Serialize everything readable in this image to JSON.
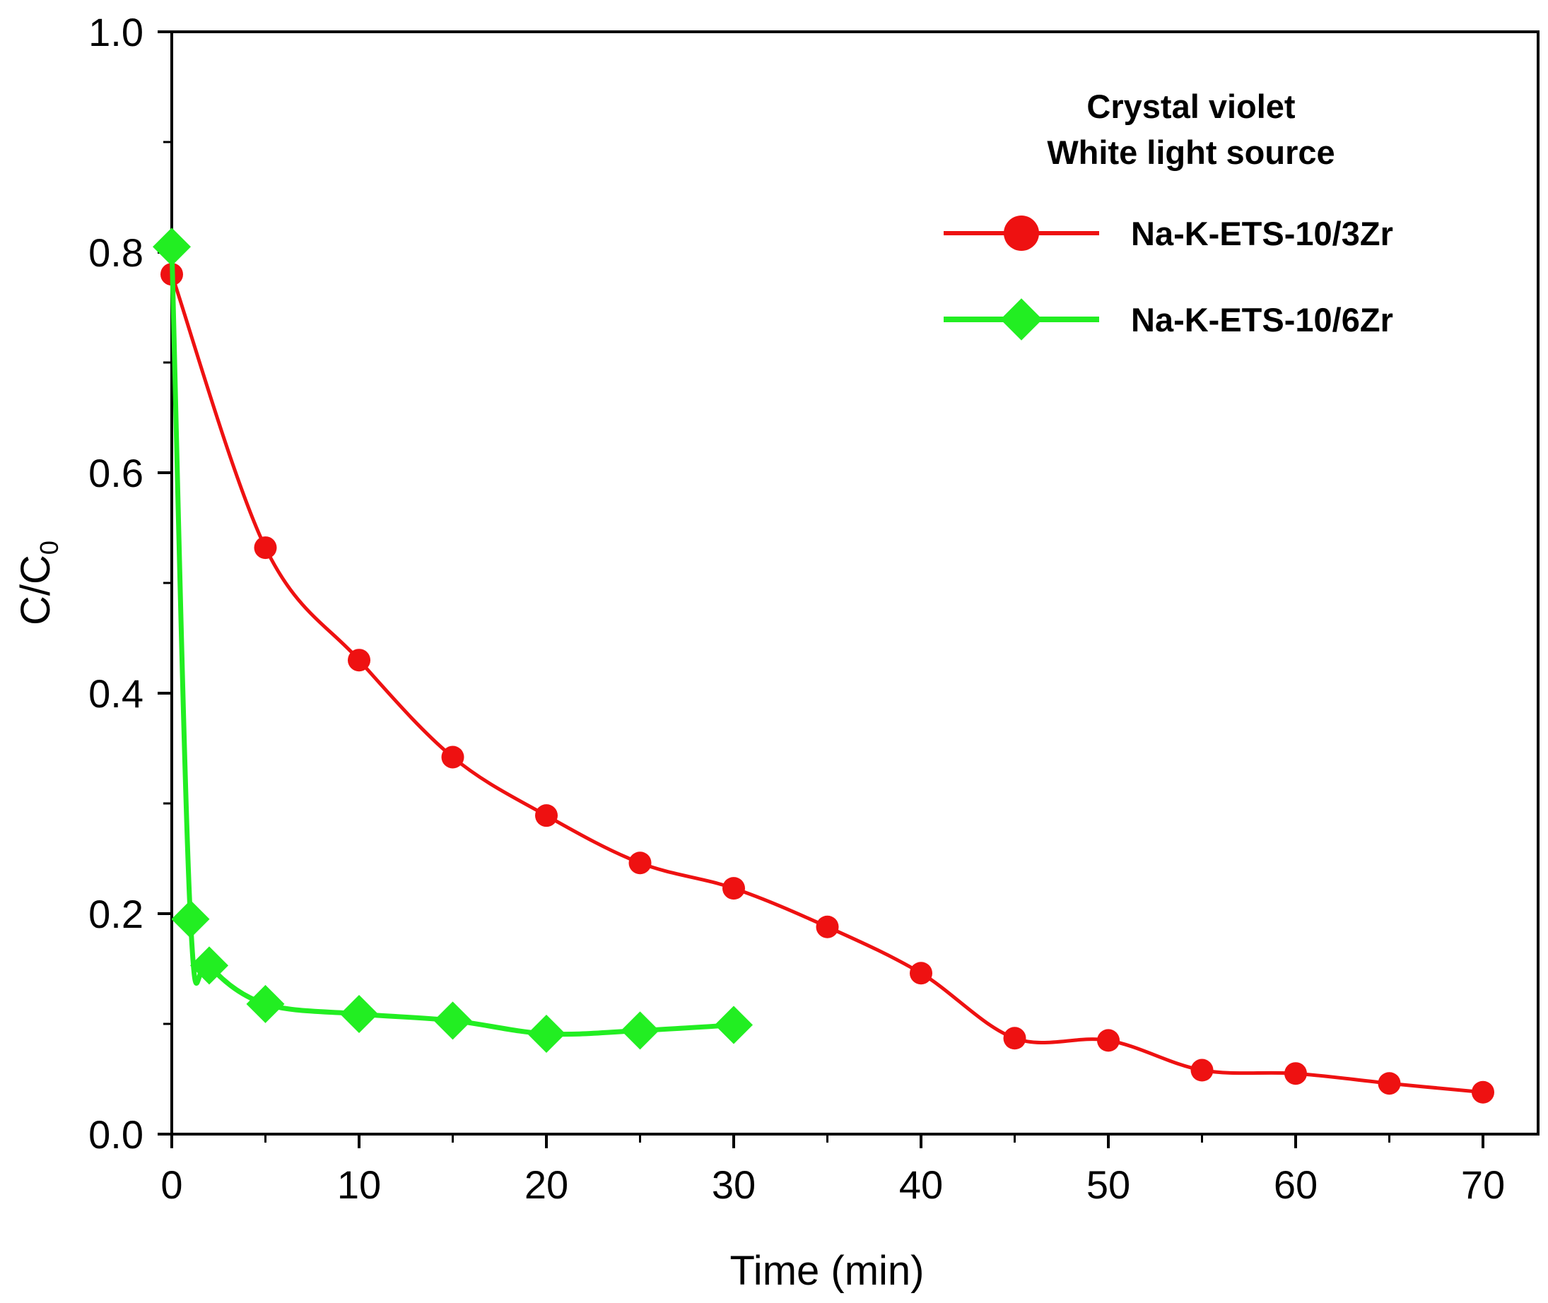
{
  "chart_data": {
    "type": "line",
    "title": "Crystal violet",
    "subtitle": "White light source",
    "xlabel": "Time (min)",
    "ylabel": "C/C",
    "ylabel_subscript": "0",
    "xlim": [
      0,
      73
    ],
    "ylim": [
      0,
      1.0
    ],
    "x_ticks": [
      "0",
      "10",
      "20",
      "30",
      "40",
      "50",
      "60",
      "70"
    ],
    "y_ticks": [
      "0.0",
      "0.2",
      "0.4",
      "0.6",
      "0.8",
      "1.0"
    ],
    "legend_position": "top-right",
    "series": [
      {
        "name": "Na-K-ETS-10/3Zr",
        "color": "#ee1111",
        "marker": "circle",
        "x": [
          0,
          5,
          10,
          15,
          20,
          25,
          30,
          35,
          40,
          45,
          50,
          55,
          60,
          65,
          70
        ],
        "values": [
          0.78,
          0.532,
          0.43,
          0.342,
          0.289,
          0.246,
          0.223,
          0.188,
          0.146,
          0.087,
          0.085,
          0.058,
          0.055,
          0.046,
          0.038
        ]
      },
      {
        "name": "Na-K-ETS-10/6Zr",
        "color": "#22ee22",
        "marker": "diamond",
        "x": [
          0,
          1,
          2,
          5,
          10,
          15,
          20,
          25,
          30
        ],
        "values": [
          0.805,
          0.195,
          0.153,
          0.118,
          0.109,
          0.103,
          0.091,
          0.094,
          0.099
        ]
      }
    ]
  }
}
